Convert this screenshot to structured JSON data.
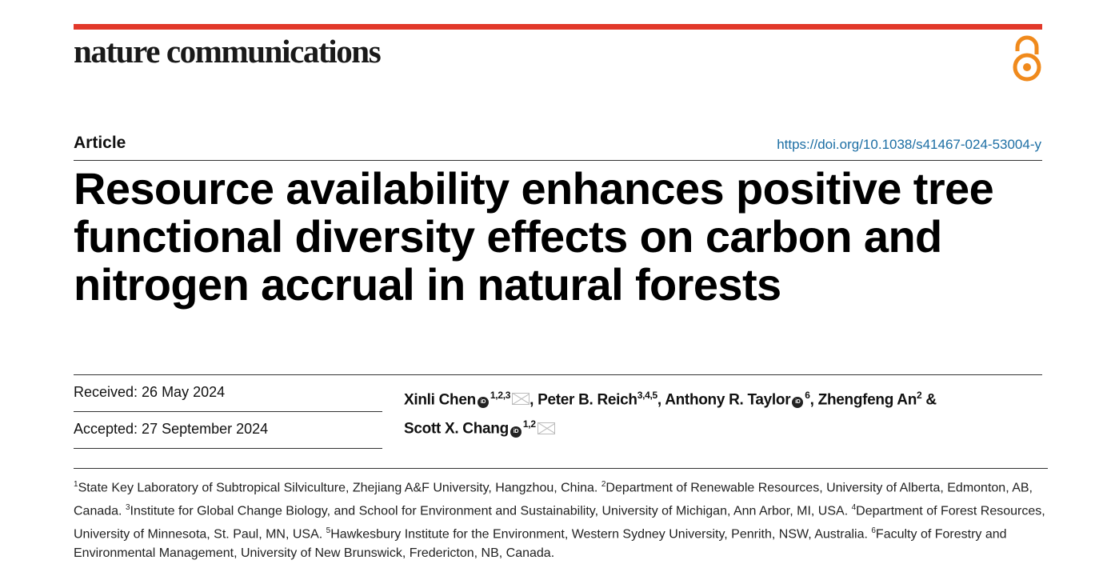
{
  "journal": {
    "name": "nature communications",
    "accent": "#e2382a",
    "oa_icon": "open-access-icon",
    "oa_color": "#f08a1c"
  },
  "header": {
    "type": "Article",
    "doi": "https://doi.org/10.1038/s41467-024-53004-y"
  },
  "title": "Resource availability enhances positive tree functional diversity effects on carbon and nitrogen accrual in natural forests",
  "dates": {
    "received": "Received: 26 May 2024",
    "accepted": "Accepted: 27 September 2024"
  },
  "authors": [
    {
      "name": "Xinli Chen",
      "sup": "1,2,3",
      "orcid": true,
      "email": true,
      "sep": ", "
    },
    {
      "name": "Peter B. Reich",
      "sup": "3,4,5",
      "orcid": false,
      "email": false,
      "sep": ", "
    },
    {
      "name": "Anthony R. Taylor",
      "sup": "6",
      "orcid": true,
      "email": false,
      "sep": ", "
    },
    {
      "name": "Zhengfeng An",
      "sup": "2",
      "orcid": false,
      "email": false,
      "sep": " & "
    },
    {
      "name": "Scott X. Chang",
      "sup": "1,2",
      "orcid": true,
      "email": true,
      "sep": ""
    }
  ],
  "affiliations": [
    {
      "n": "1",
      "text": "State Key Laboratory of Subtropical Silviculture, Zhejiang A&F University, Hangzhou, China. "
    },
    {
      "n": "2",
      "text": "Department of Renewable Resources, University of Alberta, Edmonton, AB, Canada. "
    },
    {
      "n": "3",
      "text": "Institute for Global Change Biology, and School for Environment and Sustainability, University of Michigan, Ann Arbor, MI, USA. "
    },
    {
      "n": "4",
      "text": "Department of Forest Resources, University of Minnesota, St. Paul, MN, USA. "
    },
    {
      "n": "5",
      "text": "Hawkesbury Institute for the Environment, Western Sydney University, Penrith, NSW, Australia. "
    },
    {
      "n": "6",
      "text": "Faculty of Forestry and Environmental Management, University of New Brunswick, Fredericton, NB, Canada."
    }
  ]
}
